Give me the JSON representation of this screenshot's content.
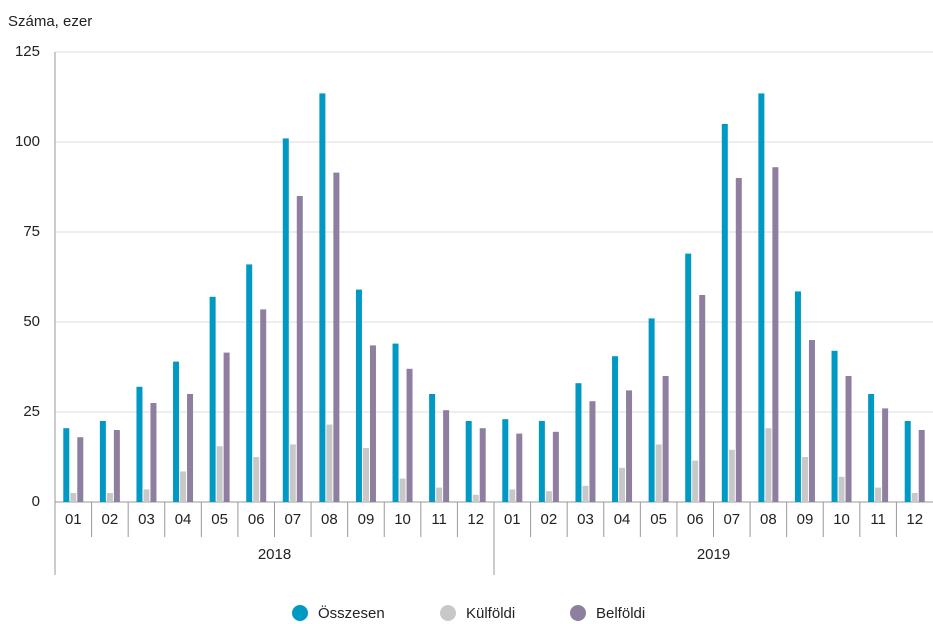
{
  "chart_data": {
    "type": "bar",
    "y_axis_label": "Száma, ezer",
    "categories": [
      "01",
      "02",
      "03",
      "04",
      "05",
      "06",
      "07",
      "08",
      "09",
      "10",
      "11",
      "12",
      "01",
      "02",
      "03",
      "04",
      "05",
      "06",
      "07",
      "08",
      "09",
      "10",
      "11",
      "12"
    ],
    "years": [
      "2018",
      "2019"
    ],
    "series": [
      {
        "name": "Összesen",
        "color": "#0099c4",
        "values": [
          20.5,
          22.5,
          32,
          39,
          57,
          66,
          101,
          113.5,
          59,
          44,
          30,
          22.5,
          23,
          22.5,
          33,
          40.5,
          51,
          69,
          105,
          113.5,
          58.5,
          42,
          30,
          22.5
        ]
      },
      {
        "name": "Külföldi",
        "color": "#c8c8c8",
        "values": [
          2.5,
          2.5,
          3.5,
          8.5,
          15.5,
          12.5,
          16,
          21.5,
          15,
          6.5,
          4,
          2,
          3.5,
          3,
          4.5,
          9.5,
          16,
          11.5,
          14.5,
          20.5,
          12.5,
          7,
          4,
          2.5
        ]
      },
      {
        "name": "Belföldi",
        "color": "#8e7fa0",
        "values": [
          18,
          20,
          27.5,
          30,
          41.5,
          53.5,
          85,
          91.5,
          43.5,
          37,
          25.5,
          20.5,
          19,
          19.5,
          28,
          31,
          35,
          57.5,
          90,
          93,
          45,
          35,
          26,
          20
        ]
      }
    ],
    "ylim": [
      0,
      125
    ],
    "yticks": [
      0,
      25,
      50,
      75,
      100,
      125
    ],
    "grid": true,
    "legend": "bottom"
  }
}
